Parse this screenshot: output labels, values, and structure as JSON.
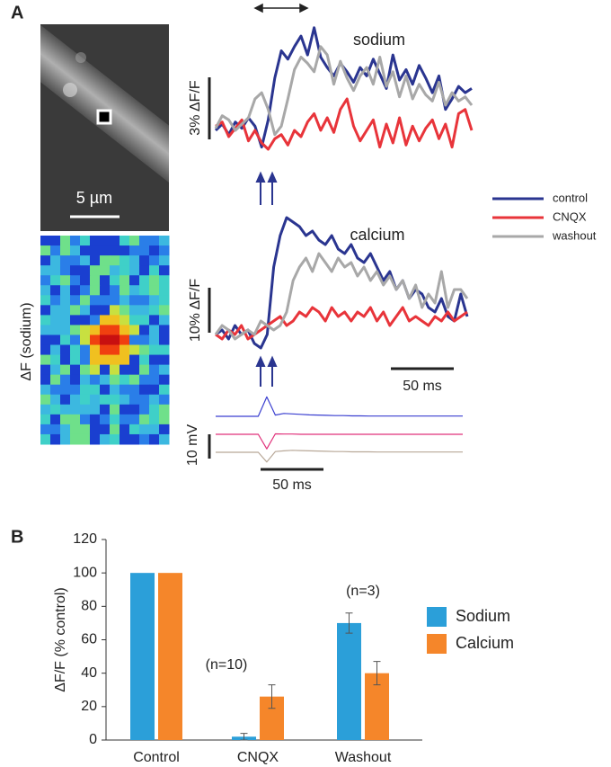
{
  "panel_labels": [
    "A",
    "B"
  ],
  "images": {
    "scale_bar_label": "5 µm",
    "heatmap_label": "ΔF (sodium)"
  },
  "chart_data": [
    {
      "type": "line",
      "title": "sodium",
      "scale_bar_label": "3% ΔF/F",
      "series": [
        {
          "name": "control",
          "color": "#2a3590",
          "values": [
            0,
            0.3,
            -0.2,
            0.4,
            0.1,
            0.6,
            0.2,
            -0.8,
            0.5,
            2.5,
            3.8,
            3.4,
            4.0,
            4.5,
            3.6,
            4.9,
            3.5,
            3.0,
            2.6,
            3.2,
            2.8,
            2.3,
            3.0,
            2.6,
            3.4,
            2.7,
            2.0,
            3.6,
            2.4,
            2.9,
            2.2,
            3.1,
            2.5,
            1.8,
            2.6,
            1.0,
            1.5,
            2.1,
            1.8,
            2.0
          ]
        },
        {
          "name": "CNQX",
          "color": "#e8343a",
          "values": [
            0.2,
            0.4,
            -0.3,
            0.1,
            0.5,
            -0.5,
            0.0,
            -0.6,
            -0.9,
            -0.4,
            -0.2,
            -0.7,
            0.0,
            -0.3,
            0.4,
            0.8,
            0.0,
            0.6,
            -0.1,
            1.0,
            1.5,
            0.2,
            -0.5,
            0.0,
            0.5,
            -0.8,
            0.3,
            -0.6,
            0.6,
            -0.7,
            0.2,
            -0.5,
            0.1,
            0.5,
            -0.4,
            0.3,
            -0.8,
            0.8,
            1.0,
            0.0
          ]
        },
        {
          "name": "washout",
          "color": "#a8a8a8",
          "values": [
            0.1,
            0.7,
            0.5,
            0.0,
            0.3,
            0.6,
            1.5,
            1.8,
            1.0,
            -0.2,
            0.2,
            1.5,
            2.9,
            3.5,
            3.2,
            2.8,
            4.0,
            3.6,
            2.2,
            3.3,
            2.5,
            1.9,
            2.6,
            3.0,
            2.2,
            3.5,
            2.1,
            2.8,
            1.6,
            2.6,
            1.5,
            2.2,
            1.7,
            1.4,
            2.3,
            1.2,
            1.8,
            1.4,
            1.6,
            1.2
          ]
        }
      ]
    },
    {
      "type": "line",
      "title": "calcium",
      "scale_bar_label": "10% ΔF/F",
      "time_bar_label": "50 ms",
      "series": [
        {
          "color": "#2a3590",
          "values": [
            0,
            1,
            -1,
            2,
            0,
            1,
            -2,
            -3,
            0,
            15,
            22,
            26,
            25,
            24,
            22,
            23,
            21,
            20,
            22,
            19,
            18,
            20,
            17,
            16,
            18,
            15,
            12,
            14,
            10,
            12,
            8,
            10,
            9,
            6,
            5,
            8,
            4,
            3,
            9,
            4
          ]
        },
        {
          "color": "#e8343a",
          "values": [
            0,
            -1,
            1,
            0,
            2,
            -1,
            0,
            1,
            2,
            3,
            4,
            2,
            3,
            5,
            4,
            6,
            5,
            3,
            6,
            4,
            5,
            3,
            5,
            4,
            6,
            3,
            5,
            2,
            4,
            6,
            3,
            4,
            3,
            2,
            4,
            3,
            5,
            3,
            4,
            5
          ]
        },
        {
          "color": "#a8a8a8",
          "values": [
            0,
            2,
            1,
            -1,
            0,
            1,
            0,
            3,
            2,
            1,
            2,
            5,
            12,
            15,
            17,
            14,
            18,
            16,
            14,
            17,
            15,
            16,
            13,
            15,
            12,
            14,
            11,
            13,
            10,
            12,
            8,
            11,
            6,
            9,
            7,
            14,
            6,
            10,
            10,
            8
          ]
        }
      ]
    },
    {
      "type": "line",
      "scale_bar_label": "10 mV",
      "time_bar_label": "50 ms",
      "series": [
        {
          "color": "#3a3fd0",
          "values": [
            0,
            0,
            0,
            0,
            0,
            0,
            8,
            0.5,
            1.2,
            1.0,
            0.8,
            0.6,
            0.5,
            0.4,
            0.3,
            0.3,
            0.2,
            0.2,
            0.1,
            0.1,
            0.1,
            0.1,
            0.1,
            0.1,
            0.1,
            0.1,
            0.1,
            0.1,
            0.1,
            0.1
          ]
        },
        {
          "color": "#e0307a",
          "values": [
            0,
            0,
            0,
            0,
            0,
            0,
            -6,
            0.2,
            0.1,
            0.1,
            0,
            0,
            0,
            0,
            0,
            0,
            0,
            0,
            0,
            0,
            0,
            0,
            0,
            0,
            0,
            0,
            0,
            0,
            0,
            0
          ]
        },
        {
          "color": "#b8a898",
          "values": [
            0,
            0,
            0,
            0,
            0,
            0,
            -4,
            0.3,
            0.6,
            0.8,
            0.7,
            0.6,
            0.5,
            0.4,
            0.3,
            0.3,
            0.2,
            0.2,
            0.2,
            0.1,
            0.1,
            0.1,
            0.1,
            0.1,
            0.1,
            0.1,
            0.1,
            0.1,
            0.1,
            0.1
          ]
        }
      ]
    },
    {
      "type": "bar",
      "ylabel": "ΔF/F (% control)",
      "categories": [
        "Control",
        "CNQX",
        "Washout"
      ],
      "series": [
        {
          "name": "Sodium",
          "color": "#2b9fd9",
          "values": [
            100,
            2,
            70
          ],
          "errors": [
            null,
            2,
            6
          ]
        },
        {
          "name": "Calcium",
          "color": "#f5862a",
          "values": [
            100,
            26,
            40
          ],
          "errors": [
            null,
            7,
            7
          ]
        }
      ],
      "annotations": [
        "(n=10)",
        "(n=3)"
      ],
      "ylim": [
        0,
        120
      ],
      "yticks": [
        0,
        20,
        40,
        60,
        80,
        100,
        120
      ]
    }
  ]
}
